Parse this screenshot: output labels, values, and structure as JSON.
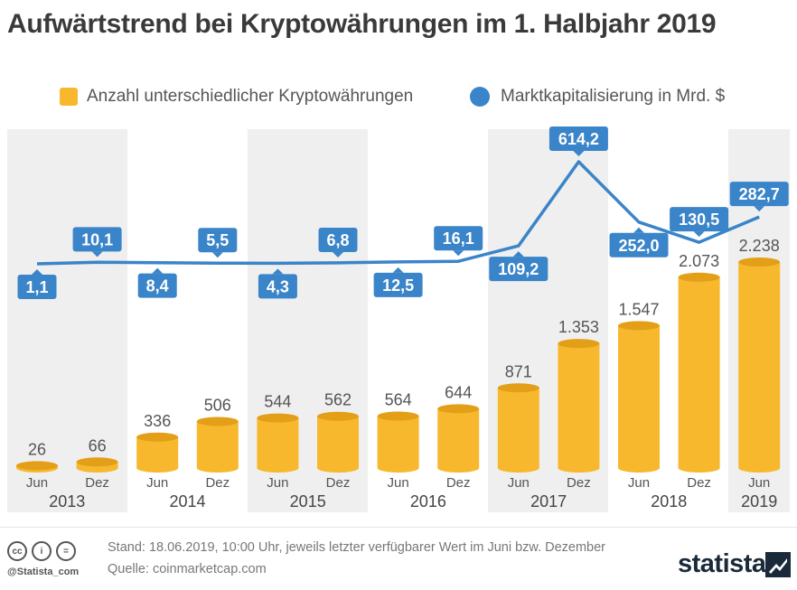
{
  "title": "Aufwärtstrend bei Kryptowährungen im 1. Halbjahr 2019",
  "legend": {
    "bars": "Anzahl unterschiedlicher Kryptowährungen",
    "line": "Marktkapitalisierung in Mrd. $"
  },
  "colors": {
    "bar": "#f7b82e",
    "bar_top": "#e29f17",
    "line": "#3a84c9",
    "label_box": "#3a84c9",
    "band": "#efefef"
  },
  "chart_data": {
    "type": "bar+line",
    "categories": [
      "Jun",
      "Dez",
      "Jun",
      "Dez",
      "Jun",
      "Dez",
      "Jun",
      "Dez",
      "Jun",
      "Dez",
      "Jun",
      "Dez",
      "Jun"
    ],
    "years": [
      "2013",
      "2014",
      "2015",
      "2016",
      "2017",
      "2018",
      "2019"
    ],
    "series": [
      {
        "name": "Anzahl unterschiedlicher Kryptowährungen",
        "type": "bar",
        "values": [
          26,
          66,
          336,
          506,
          544,
          562,
          564,
          644,
          871,
          1353,
          1547,
          2073,
          2238
        ],
        "labels": [
          "26",
          "66",
          "336",
          "506",
          "544",
          "562",
          "564",
          "644",
          "871",
          "1.353",
          "1.547",
          "2.073",
          "2.238"
        ]
      },
      {
        "name": "Marktkapitalisierung in Mrd. $",
        "type": "line",
        "values": [
          1.1,
          10.1,
          8.4,
          5.5,
          4.3,
          6.8,
          12.5,
          16.1,
          109.2,
          614.2,
          252.0,
          130.5,
          282.7
        ],
        "labels": [
          "1,1",
          "10,1",
          "8,4",
          "5,5",
          "4,3",
          "6,8",
          "12,5",
          "16,1",
          "109,2",
          "614,2",
          "252,0",
          "130,5",
          "282,7"
        ]
      }
    ]
  },
  "footer": {
    "stand": "Stand: 18.06.2019, 10:00 Uhr, jeweils letzter verfügbarer Wert im Juni bzw. Dezember",
    "quelle": "Quelle: coinmarketcap.com",
    "handle": "@Statista_com",
    "brand": "statista"
  }
}
